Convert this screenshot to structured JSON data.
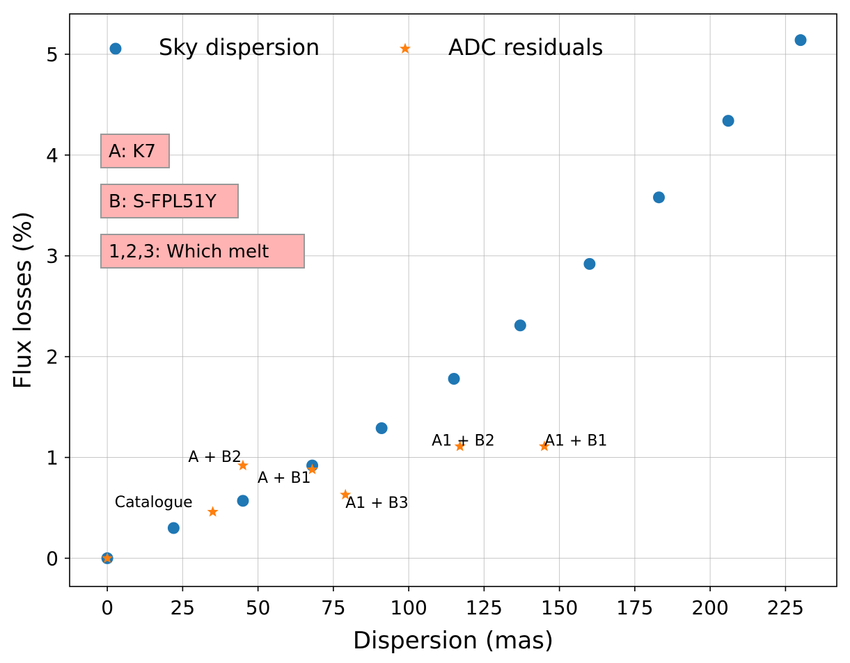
{
  "chart_data": {
    "type": "scatter",
    "title": "",
    "xlabel": "Dispersion (mas)",
    "ylabel": "Flux losses (%)",
    "xlim": [
      -12.5,
      242
    ],
    "ylim": [
      -0.28,
      5.4
    ],
    "xticks": [
      0,
      25,
      50,
      75,
      100,
      125,
      150,
      175,
      200,
      225
    ],
    "yticks": [
      0,
      1,
      2,
      3,
      4,
      5
    ],
    "grid": true,
    "legend_position": "top",
    "series": [
      {
        "name": "Sky dispersion",
        "marker": "circle",
        "color": "#1f77b4",
        "points": [
          {
            "x": 0,
            "y": 0.0
          },
          {
            "x": 22,
            "y": 0.3
          },
          {
            "x": 45,
            "y": 0.57
          },
          {
            "x": 68,
            "y": 0.92
          },
          {
            "x": 91,
            "y": 1.29
          },
          {
            "x": 115,
            "y": 1.78
          },
          {
            "x": 137,
            "y": 2.31
          },
          {
            "x": 160,
            "y": 2.92
          },
          {
            "x": 183,
            "y": 3.58
          },
          {
            "x": 206,
            "y": 4.34
          },
          {
            "x": 230,
            "y": 5.14
          }
        ]
      },
      {
        "name": "ADC residuals",
        "marker": "star",
        "color": "#ff7f0e",
        "points": [
          {
            "x": 0,
            "y": 0.0,
            "label": ""
          },
          {
            "x": 35,
            "y": 0.46,
            "label": "Catalogue"
          },
          {
            "x": 45,
            "y": 0.92,
            "label": "A + B2"
          },
          {
            "x": 68,
            "y": 0.88,
            "label": "A + B1"
          },
          {
            "x": 79,
            "y": 0.63,
            "label": "A1 + B3"
          },
          {
            "x": 117,
            "y": 1.11,
            "label": "A1 + B2"
          },
          {
            "x": 145,
            "y": 1.11,
            "label": "A1 + B1"
          }
        ]
      }
    ],
    "text_boxes": [
      {
        "text": "A: K7",
        "color": "#ffb3b3"
      },
      {
        "text": "B: S-FPL51Y",
        "color": "#ffb3b3"
      },
      {
        "text": "1,2,3: Which melt",
        "color": "#ffb3b3"
      }
    ]
  }
}
